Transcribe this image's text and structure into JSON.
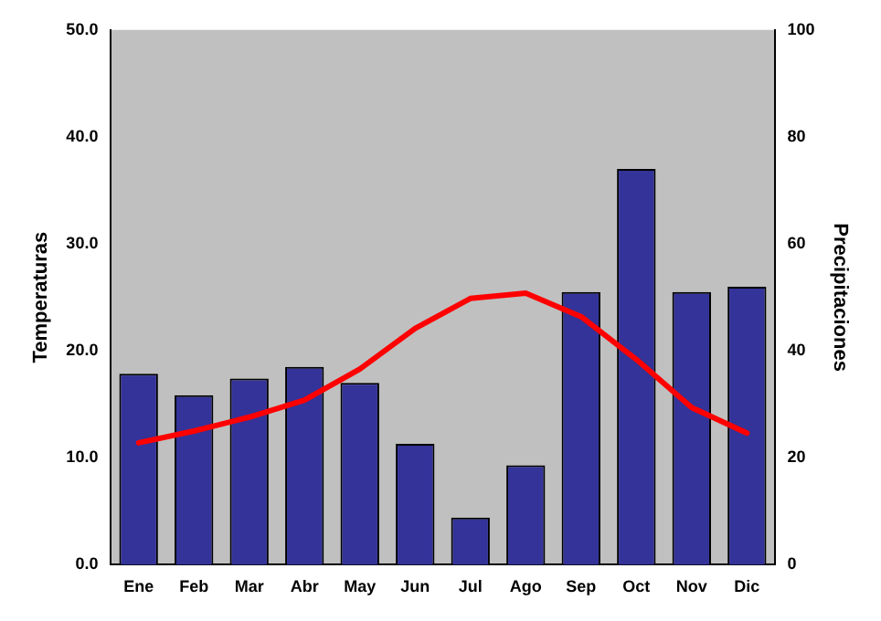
{
  "chart_data": {
    "type": "bar",
    "ylabel": "Temperaturas",
    "y2label": "Precipitaciones",
    "categories": [
      "Ene",
      "Feb",
      "Mar",
      "Abr",
      "May",
      "Jun",
      "Jul",
      "Ago",
      "Sep",
      "Oct",
      "Nov",
      "Dic"
    ],
    "series": [
      {
        "axis": "y2",
        "color": "#333399",
        "values": [
          35.7,
          31.7,
          34.8,
          37,
          34,
          22.6,
          8.8,
          18.6,
          51,
          74,
          51,
          52
        ]
      },
      {
        "type": "line",
        "axis": "y",
        "color": "#ff0000",
        "values": [
          11.4,
          12.5,
          13.8,
          15.4,
          18.3,
          22.1,
          24.9,
          25.4,
          23.2,
          19.2,
          14.7,
          12.3
        ]
      }
    ],
    "ylim": [
      0,
      50
    ],
    "yticks": [
      {
        "value": 0,
        "label": "0.0"
      },
      {
        "value": 10,
        "label": "10.0"
      },
      {
        "value": 20,
        "label": "20.0"
      },
      {
        "value": 30,
        "label": "30.0"
      },
      {
        "value": 40,
        "label": "40.0"
      },
      {
        "value": 50,
        "label": "50.0"
      }
    ],
    "y2lim": [
      0,
      100
    ],
    "y2ticks": [
      0,
      20,
      40,
      60,
      80,
      100
    ],
    "grid": false,
    "legend": false,
    "marker": "none"
  }
}
